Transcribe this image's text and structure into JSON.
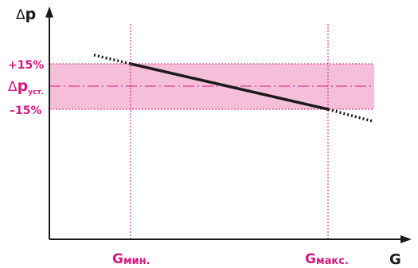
{
  "axes": {
    "y_label_delta": "Δ",
    "y_label": "p",
    "x_label": "G"
  },
  "band": {
    "upper_label": "+15%",
    "lower_label": "–15%",
    "setpoint_delta": "Δ",
    "setpoint_main": "p",
    "setpoint_sub": "уст."
  },
  "flow_markers": {
    "min_main": "G",
    "min_sub": "мин.",
    "max_main": "G",
    "max_sub": "макс."
  },
  "colors": {
    "accent": "#d6187e",
    "band_fill": "#f5bfd9",
    "axis": "#1a1a1a"
  }
}
